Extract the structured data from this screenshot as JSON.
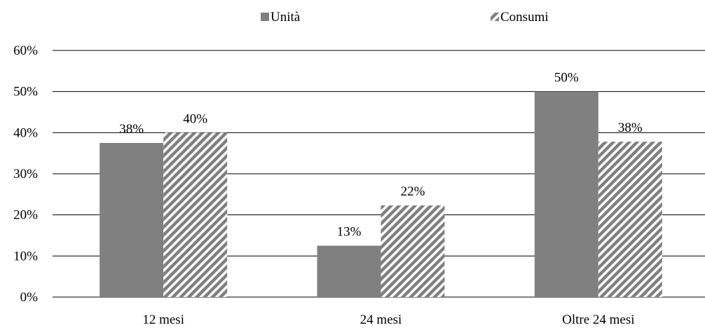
{
  "chart_data": {
    "type": "bar",
    "categories": [
      "12 mesi",
      "24 mesi",
      "Oltre 24 mesi"
    ],
    "series": [
      {
        "name": "Unità",
        "values": [
          37.5,
          12.5,
          50
        ],
        "labels": [
          "38%",
          "13%",
          "50%"
        ],
        "fill": "solid",
        "color": "#808080"
      },
      {
        "name": "Consumi",
        "values": [
          40,
          22.3,
          37.8
        ],
        "labels": [
          "40%",
          "22%",
          "38%"
        ],
        "fill": "diagonal-stripes",
        "color": "#808080"
      }
    ],
    "yticks": [
      "0%",
      "10%",
      "20%",
      "30%",
      "40%",
      "50%",
      "60%"
    ],
    "ylim": [
      0,
      60
    ],
    "grid": true,
    "legend_position": "top-center",
    "title": "",
    "xlabel": "",
    "ylabel": ""
  }
}
